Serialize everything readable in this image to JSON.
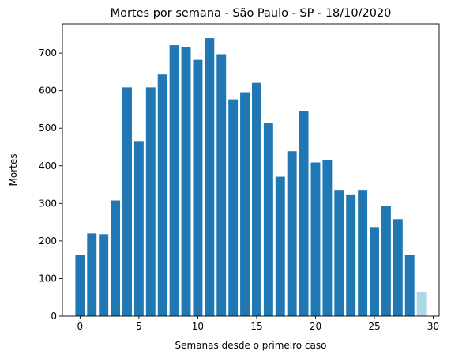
{
  "chart_data": {
    "type": "bar",
    "title": "Mortes por semana - São Paulo - SP - 18/10/2020",
    "xlabel": "Semanas desde o primeiro caso",
    "ylabel": "Mortes",
    "xlim": [
      -1.5,
      30.5
    ],
    "ylim": [
      0,
      778
    ],
    "x_ticks": [
      0,
      5,
      10,
      15,
      20,
      25,
      30
    ],
    "y_ticks": [
      0,
      100,
      200,
      300,
      400,
      500,
      600,
      700
    ],
    "grid": false,
    "series": [
      {
        "color": "#1f77b4",
        "x": [
          0,
          1,
          2,
          3,
          4,
          5,
          6,
          7,
          8,
          9,
          10,
          11,
          12,
          13,
          14,
          15,
          16,
          17,
          18,
          19,
          20,
          21,
          22,
          23,
          24,
          25,
          26,
          27,
          28
        ],
        "values": [
          163,
          220,
          218,
          308,
          609,
          464,
          609,
          643,
          721,
          716,
          682,
          740,
          697,
          577,
          594,
          621,
          513,
          371,
          439,
          545,
          409,
          416,
          334,
          322,
          334,
          237,
          294,
          258,
          162
        ]
      },
      {
        "color": "#add8e6",
        "x": [
          29
        ],
        "values": [
          65
        ]
      }
    ]
  }
}
